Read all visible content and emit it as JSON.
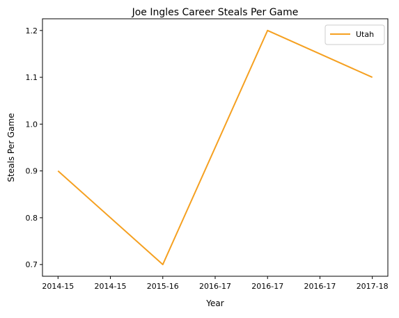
{
  "chart_data": {
    "type": "line",
    "title": "Joe Ingles Career Steals Per Game",
    "xlabel": "Year",
    "ylabel": "Steals Per Game",
    "x": [
      "2014-15",
      "2015-16",
      "2016-17",
      "2017-18"
    ],
    "x_tick_labels": [
      "2014-15",
      "2014-15",
      "2015-16",
      "2016-17",
      "2016-17",
      "2016-17",
      "2017-18"
    ],
    "series": [
      {
        "name": "Utah",
        "color": "#f5a020",
        "values": [
          0.9,
          0.7,
          1.2,
          1.1
        ]
      }
    ],
    "y_ticks": [
      "0.7",
      "0.8",
      "0.9",
      "1.0",
      "1.1",
      "1.2"
    ],
    "ylim": [
      0.675,
      1.225
    ],
    "grid": false,
    "legend": "top-right"
  }
}
